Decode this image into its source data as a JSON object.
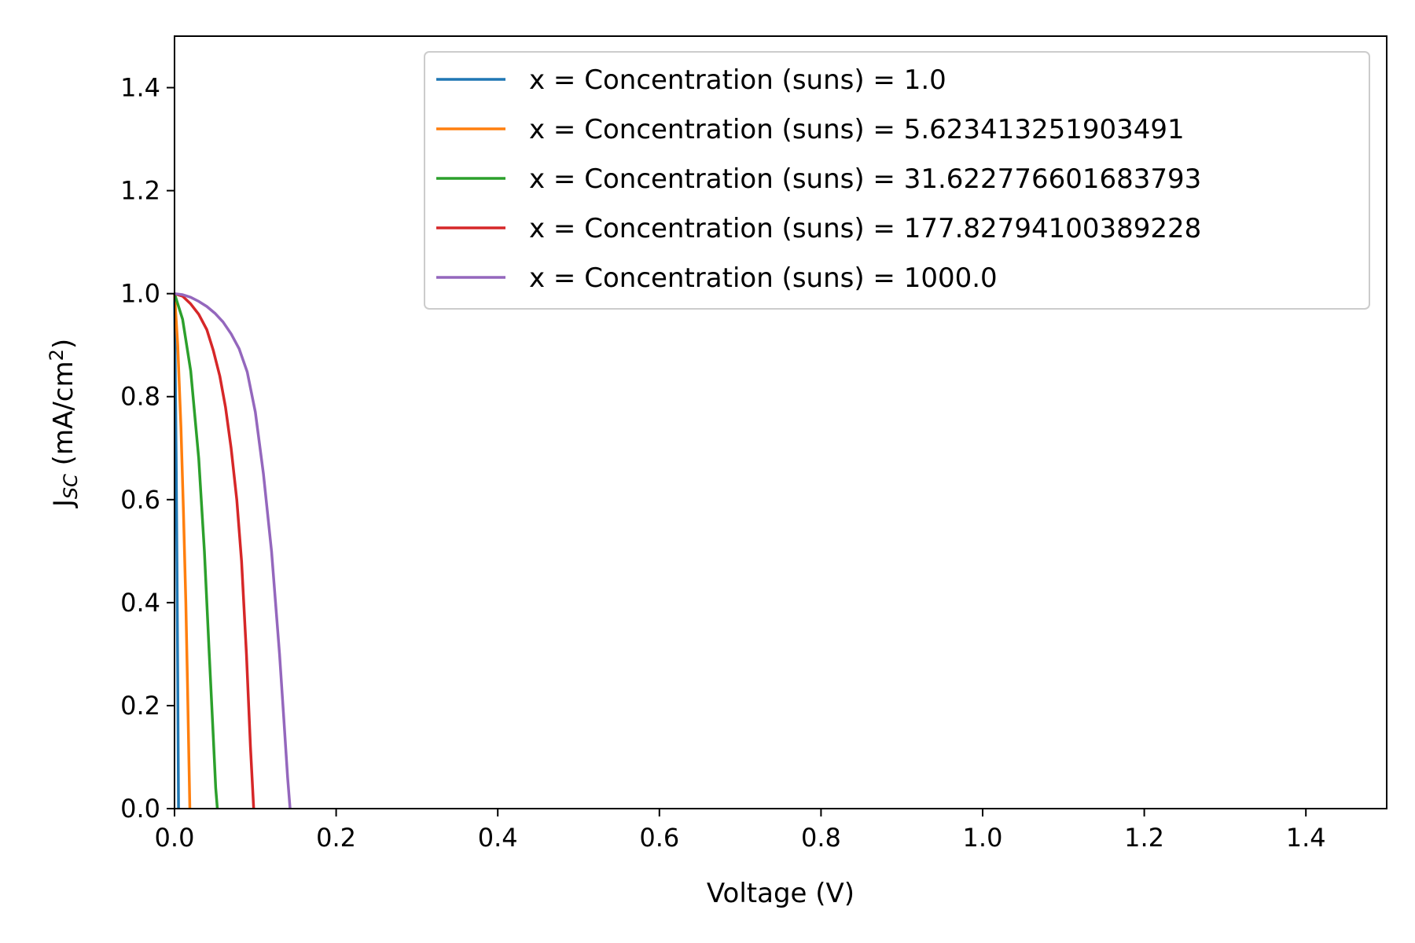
{
  "chart_data": {
    "type": "line",
    "title": "",
    "xlabel": "Voltage (V)",
    "ylabel": "J",
    "ylabel_sub": "SC",
    "ylabel_unit": " (mA/cm",
    "ylabel_sup": "2",
    "ylabel_close": ")",
    "xlim": [
      0.0,
      1.5
    ],
    "ylim": [
      0.0,
      1.5
    ],
    "xticks": [
      0.0,
      0.2,
      0.4,
      0.6,
      0.8,
      1.0,
      1.2,
      1.4
    ],
    "xtick_labels": [
      "0.0",
      "0.2",
      "0.4",
      "0.6",
      "0.8",
      "1.0",
      "1.2",
      "1.4"
    ],
    "yticks": [
      0.0,
      0.2,
      0.4,
      0.6,
      0.8,
      1.0,
      1.2,
      1.4
    ],
    "ytick_labels": [
      "0.0",
      "0.2",
      "0.4",
      "0.6",
      "0.8",
      "1.0",
      "1.2",
      "1.4"
    ],
    "grid": false,
    "legend_position": "top-right",
    "series": [
      {
        "name": "x = Concentration (suns) = 1.0",
        "color": "#1f77b4",
        "x": [
          0.0,
          0.001,
          0.002,
          0.003,
          0.004,
          0.0045,
          0.005
        ],
        "y": [
          1.0,
          0.85,
          0.68,
          0.48,
          0.25,
          0.12,
          0.0
        ]
      },
      {
        "name": "x = Concentration (suns) = 5.623413251903491",
        "color": "#ff7f0e",
        "x": [
          0.0,
          0.004,
          0.008,
          0.011,
          0.014,
          0.016,
          0.018,
          0.019
        ],
        "y": [
          1.0,
          0.9,
          0.74,
          0.58,
          0.4,
          0.25,
          0.08,
          0.0
        ]
      },
      {
        "name": "x = Concentration (suns) = 31.622776601683793",
        "color": "#2ca02c",
        "x": [
          0.0,
          0.01,
          0.02,
          0.03,
          0.037,
          0.043,
          0.048,
          0.051,
          0.053
        ],
        "y": [
          1.0,
          0.95,
          0.85,
          0.68,
          0.5,
          0.3,
          0.14,
          0.04,
          0.0
        ]
      },
      {
        "name": "x = Concentration (suns) = 177.82794100389228",
        "color": "#d62728",
        "x": [
          0.0,
          0.01,
          0.02,
          0.03,
          0.04,
          0.048,
          0.056,
          0.063,
          0.07,
          0.077,
          0.083,
          0.089,
          0.094,
          0.098
        ],
        "y": [
          1.0,
          0.995,
          0.98,
          0.96,
          0.93,
          0.89,
          0.84,
          0.78,
          0.7,
          0.6,
          0.48,
          0.3,
          0.12,
          0.0
        ]
      },
      {
        "name": "x = Concentration (suns) = 1000.0",
        "color": "#9467bd",
        "x": [
          0.0,
          0.01,
          0.02,
          0.03,
          0.04,
          0.05,
          0.06,
          0.07,
          0.08,
          0.09,
          0.1,
          0.11,
          0.12,
          0.13,
          0.135,
          0.14,
          0.143
        ],
        "y": [
          1.0,
          0.998,
          0.993,
          0.985,
          0.975,
          0.962,
          0.945,
          0.922,
          0.893,
          0.848,
          0.77,
          0.65,
          0.5,
          0.3,
          0.18,
          0.06,
          0.0
        ]
      }
    ]
  }
}
